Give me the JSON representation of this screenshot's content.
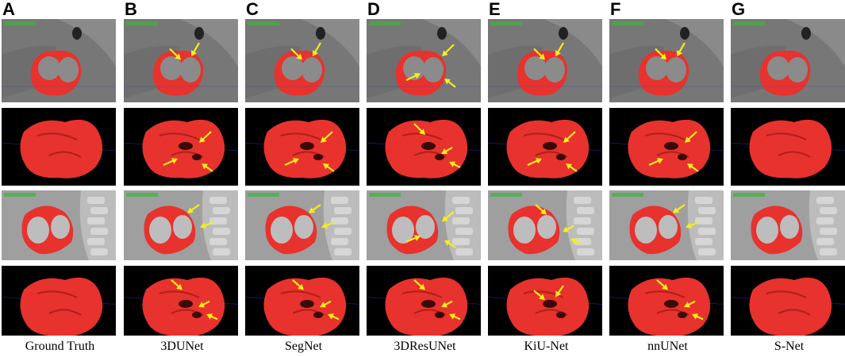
{
  "panels": [
    {
      "label": "A",
      "caption": "Ground Truth",
      "arrows": []
    },
    {
      "label": "B",
      "caption": "3DUNet",
      "arrows": [
        "r1",
        "r2",
        "r3",
        "r4"
      ]
    },
    {
      "label": "C",
      "caption": "SegNet",
      "arrows": [
        "r1",
        "r2",
        "r3",
        "r4"
      ]
    },
    {
      "label": "D",
      "caption": "3DResUNet",
      "arrows": [
        "r2",
        "r4"
      ]
    },
    {
      "label": "E",
      "caption": "KiU-Net",
      "arrows": [
        "r1",
        "r2",
        "r4"
      ]
    },
    {
      "label": "F",
      "caption": "nnUNet",
      "arrows": [
        "r1",
        "r2",
        "r3",
        "r4"
      ]
    },
    {
      "label": "G",
      "caption": "S-Net",
      "arrows": []
    }
  ],
  "colors": {
    "segmentation": "#e8322d",
    "arrow": "#f5ee1a",
    "render_bg": "#000000"
  }
}
